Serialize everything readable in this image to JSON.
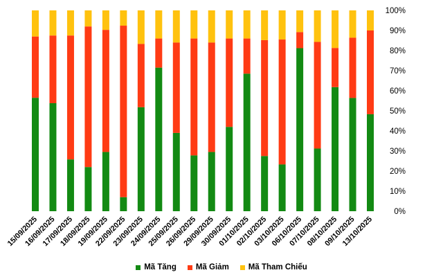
{
  "chart_data": {
    "type": "bar",
    "stacked": true,
    "percent": true,
    "ylim": [
      0,
      100
    ],
    "yticks": [
      "0%",
      "10%",
      "20%",
      "30%",
      "40%",
      "50%",
      "60%",
      "70%",
      "80%",
      "90%",
      "100%"
    ],
    "grid": false,
    "legend_position": "bottom",
    "categories": [
      "15/09/2025",
      "16/09/2025",
      "17/09/2025",
      "18/09/2025",
      "19/09/2025",
      "22/09/2025",
      "23/09/2025",
      "24/09/2025",
      "25/09/2025",
      "26/09/2025",
      "29/09/2025",
      "30/09/2025",
      "01/10/2025",
      "02/10/2025",
      "03/10/2025",
      "06/10/2025",
      "07/10/2025",
      "08/10/2025",
      "09/10/2025",
      "13/10/2025"
    ],
    "series": [
      {
        "name": "Mã Tăng",
        "color": "#138a13",
        "values": [
          56.5,
          53.8,
          25.8,
          22.0,
          29.5,
          7.0,
          51.8,
          71.5,
          39.0,
          27.8,
          29.5,
          42.0,
          68.5,
          27.5,
          23.3,
          81.2,
          31.2,
          61.8,
          56.4,
          48.3
        ]
      },
      {
        "name": "Mã Giảm",
        "color": "#ff3b14",
        "values": [
          30.5,
          33.7,
          61.7,
          70.0,
          60.8,
          85.4,
          31.5,
          14.5,
          45.0,
          58.2,
          54.5,
          44.0,
          17.5,
          57.7,
          62.2,
          8.0,
          53.1,
          19.5,
          30.0,
          41.7
        ]
      },
      {
        "name": "Mã Tham Chiếu",
        "color": "#ffc20e",
        "values": [
          13.0,
          12.5,
          12.5,
          8.0,
          9.7,
          7.6,
          16.7,
          14.0,
          16.0,
          14.0,
          16.0,
          14.0,
          14.0,
          14.8,
          14.5,
          10.8,
          15.7,
          18.7,
          13.6,
          10.0
        ]
      }
    ]
  }
}
